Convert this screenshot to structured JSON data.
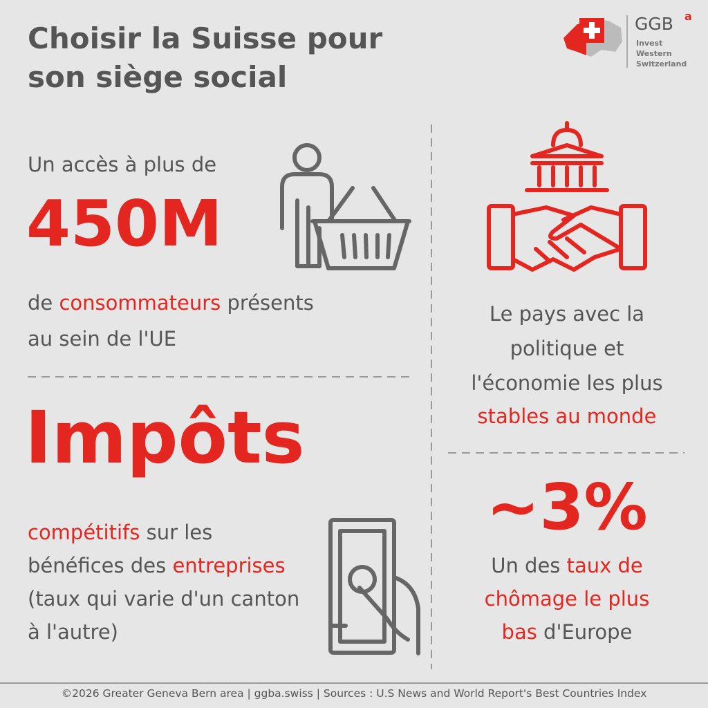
{
  "header": {
    "title": "Choisir la Suisse pour son siège social"
  },
  "logo": {
    "name": "GGB",
    "superscript": "a",
    "tagline": [
      "Invest",
      "Western",
      "Switzerland"
    ]
  },
  "market": {
    "intro": "Un accès à plus de",
    "figure": "450M",
    "lines": [
      [
        "de ",
        "consommateurs",
        " présents"
      ],
      [
        "au sein de l'UE"
      ]
    ]
  },
  "taxes": {
    "headline": "Impôts",
    "lines": [
      [
        "compétitifs",
        " sur les"
      ],
      [
        "bénéfices des ",
        "entreprises"
      ],
      [
        "(taux qui varie d'un canton"
      ],
      [
        "à l'autre)"
      ]
    ]
  },
  "stability": {
    "lines": [
      [
        "Le pays avec la"
      ],
      [
        "politique et"
      ],
      [
        "l'économie les plus"
      ],
      [
        "stables au monde"
      ]
    ]
  },
  "unemployment": {
    "figure": "~3%",
    "lines": [
      [
        "Un des ",
        "taux de"
      ],
      [
        "chômage le plus"
      ],
      [
        "bas",
        " d'Europe"
      ]
    ]
  },
  "footer": {
    "credit": "©2026 Greater Geneva Bern area | ggba.swiss | Sources : U.S News and World Report's Best Countries Index"
  }
}
